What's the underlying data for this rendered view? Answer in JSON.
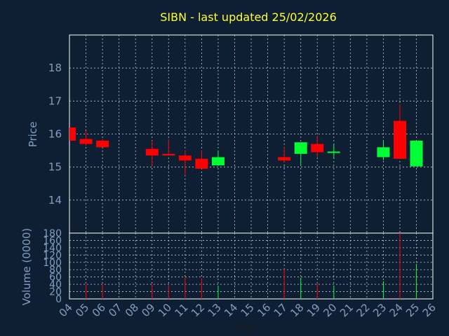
{
  "chart_data": {
    "type": "candlestick",
    "title": "SIBN - last updated 25/02/2026",
    "price_panel": {
      "ylabel": "Price",
      "ylim": [
        13,
        19
      ],
      "yticks": [
        14,
        15,
        16,
        17,
        18
      ],
      "grid": true
    },
    "volume_panel": {
      "ylabel": "Volume (0000)",
      "ylim": [
        0,
        180
      ],
      "yticks": [
        0,
        20,
        40,
        60,
        80,
        100,
        120,
        140,
        160,
        180
      ],
      "grid": true
    },
    "xlabel": "Day",
    "x_ticks": [
      "04",
      "05",
      "06",
      "07",
      "08",
      "09",
      "10",
      "11",
      "12",
      "13",
      "14",
      "15",
      "16",
      "17",
      "18",
      "19",
      "20",
      "21",
      "22",
      "23",
      "24",
      "25",
      "26"
    ],
    "candles": [
      {
        "day": "04",
        "open": 16.2,
        "high": 16.2,
        "low": 15.8,
        "close": 15.8,
        "volume": 0
      },
      {
        "day": "05",
        "open": 15.85,
        "high": 16.1,
        "low": 15.65,
        "close": 15.7,
        "volume": 40
      },
      {
        "day": "06",
        "open": 15.8,
        "high": 15.85,
        "low": 15.6,
        "close": 15.6,
        "volume": 40
      },
      {
        "day": "09",
        "open": 15.55,
        "high": 15.8,
        "low": 15.05,
        "close": 15.35,
        "volume": 40
      },
      {
        "day": "10",
        "open": 15.4,
        "high": 15.85,
        "low": 15.35,
        "close": 15.35,
        "volume": 38
      },
      {
        "day": "11",
        "open": 15.35,
        "high": 15.5,
        "low": 14.75,
        "close": 15.2,
        "volume": 60
      },
      {
        "day": "12",
        "open": 15.25,
        "high": 15.5,
        "low": 14.95,
        "close": 14.95,
        "volume": 55
      },
      {
        "day": "13",
        "open": 15.05,
        "high": 15.5,
        "low": 15.05,
        "close": 15.3,
        "volume": 35
      },
      {
        "day": "17",
        "open": 15.3,
        "high": 15.6,
        "low": 15.15,
        "close": 15.2,
        "volume": 82
      },
      {
        "day": "18",
        "open": 15.4,
        "high": 15.75,
        "low": 15.05,
        "close": 15.75,
        "volume": 58
      },
      {
        "day": "19",
        "open": 15.7,
        "high": 15.95,
        "low": 15.3,
        "close": 15.45,
        "volume": 43
      },
      {
        "day": "20",
        "open": 15.45,
        "high": 15.7,
        "low": 15.25,
        "close": 15.47,
        "volume": 36
      },
      {
        "day": "23",
        "open": 15.3,
        "high": 15.8,
        "low": 15.2,
        "close": 15.6,
        "volume": 48
      },
      {
        "day": "24",
        "open": 16.4,
        "high": 16.9,
        "low": 15.25,
        "close": 15.25,
        "volume": 180
      },
      {
        "day": "25",
        "open": 15.02,
        "high": 15.8,
        "low": 15.02,
        "close": 15.8,
        "volume": 96
      }
    ],
    "colors": {
      "background": "#0f1f33",
      "plot_border": "#ffffff",
      "grid": "#bfc7d2",
      "up": "#00ff33",
      "down": "#ff0000",
      "title": "#ffff33",
      "axis_text": "#7f9fc3",
      "xlabel_text": "#1a1a1a"
    }
  }
}
